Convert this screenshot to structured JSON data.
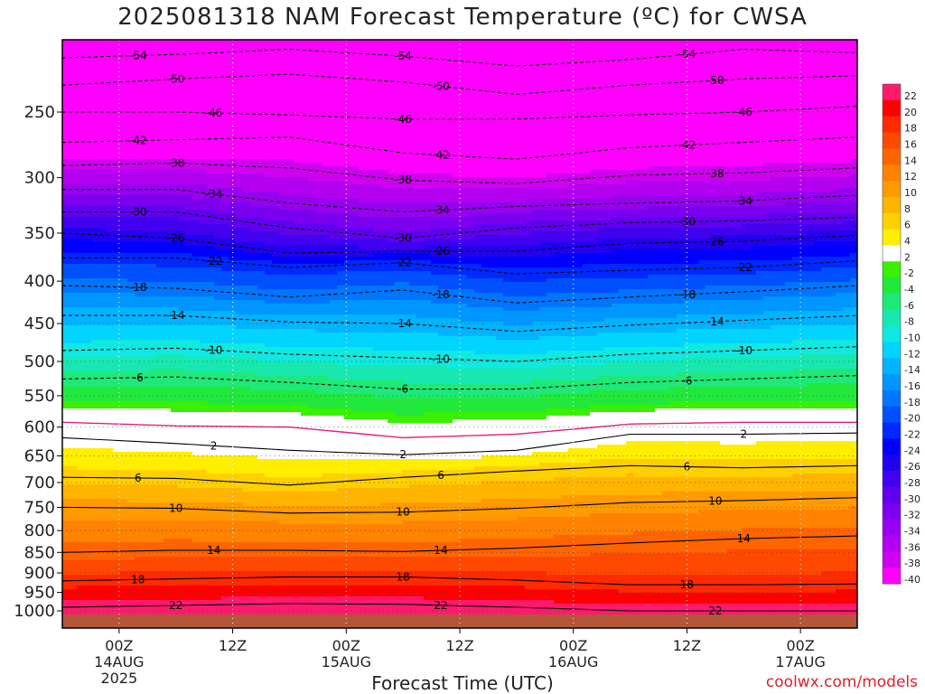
{
  "title": "2025081318 NAM Forecast Temperature (ºC) for CWSA",
  "xlabel": "Forecast Time (UTC)",
  "credit": "coolwx.com/models",
  "chart_data": {
    "type": "heatmap",
    "title": "2025081318 NAM Forecast Temperature (ºC) for CWSA",
    "xlabel": "Forecast Time (UTC)",
    "ylabel": "",
    "y_axis": "pressure (hPa), inverted",
    "y_ticks": [
      250,
      300,
      350,
      400,
      450,
      500,
      550,
      600,
      650,
      700,
      750,
      800,
      850,
      900,
      950,
      1000
    ],
    "x_ticks": [
      {
        "l1": "00Z",
        "l2": "14AUG",
        "l3": "2025",
        "hour": 6
      },
      {
        "l1": "12Z",
        "l2": "",
        "l3": "",
        "hour": 18
      },
      {
        "l1": "00Z",
        "l2": "15AUG",
        "l3": "",
        "hour": 30
      },
      {
        "l1": "12Z",
        "l2": "",
        "l3": "",
        "hour": 42
      },
      {
        "l1": "00Z",
        "l2": "16AUG",
        "l3": "",
        "hour": 54
      },
      {
        "l1": "12Z",
        "l2": "",
        "l3": "",
        "hour": 66
      },
      {
        "l1": "00Z",
        "l2": "17AUG",
        "l3": "",
        "hour": 78
      }
    ],
    "xlim": [
      0,
      84
    ],
    "colorbar": [
      {
        "label": "22",
        "color": "#ff1a6e"
      },
      {
        "label": "20",
        "color": "#ff0000"
      },
      {
        "label": "18",
        "color": "#ff2a00"
      },
      {
        "label": "16",
        "color": "#ff4800"
      },
      {
        "label": "14",
        "color": "#ff6400"
      },
      {
        "label": "12",
        "color": "#ff8200"
      },
      {
        "label": "10",
        "color": "#ff9a00"
      },
      {
        "label": "8",
        "color": "#ffb400"
      },
      {
        "label": "6",
        "color": "#ffd000"
      },
      {
        "label": "4",
        "color": "#ffee00"
      },
      {
        "label": "2",
        "color": "#ffffff"
      },
      {
        "label": "-2",
        "color": "#38f000"
      },
      {
        "label": "-4",
        "color": "#22e83c"
      },
      {
        "label": "-6",
        "color": "#1ee878"
      },
      {
        "label": "-8",
        "color": "#18e8b0"
      },
      {
        "label": "-10",
        "color": "#10e8e0"
      },
      {
        "label": "-12",
        "color": "#00d4ff"
      },
      {
        "label": "-14",
        "color": "#00b4ff"
      },
      {
        "label": "-16",
        "color": "#0096ff"
      },
      {
        "label": "-18",
        "color": "#0076ff"
      },
      {
        "label": "-20",
        "color": "#0050ff"
      },
      {
        "label": "-22",
        "color": "#0028ff"
      },
      {
        "label": "-24",
        "color": "#0000ff"
      },
      {
        "label": "-26",
        "color": "#2200f0"
      },
      {
        "label": "-28",
        "color": "#4200f0"
      },
      {
        "label": "-30",
        "color": "#6000f0"
      },
      {
        "label": "-32",
        "color": "#7c00f0"
      },
      {
        "label": "-34",
        "color": "#9800f0"
      },
      {
        "label": "-36",
        "color": "#b400f0"
      },
      {
        "label": "-38",
        "color": "#d000f0"
      },
      {
        "label": "-40",
        "color": "#ff00ff"
      }
    ],
    "isotherms": [
      {
        "value": -54,
        "pressure": [
          215,
          213,
          210,
          214,
          220,
          216,
          210,
          212
        ],
        "label": "-54",
        "dashed": true
      },
      {
        "value": -50,
        "pressure": [
          232,
          228,
          225,
          230,
          238,
          232,
          228,
          226
        ],
        "label": "-50",
        "dashed": true
      },
      {
        "value": -46,
        "pressure": [
          250,
          250,
          252,
          255,
          255,
          252,
          250,
          246
        ],
        "label": "-46",
        "dashed": true
      },
      {
        "value": -42,
        "pressure": [
          272,
          270,
          268,
          280,
          285,
          276,
          272,
          268
        ],
        "label": "-42",
        "dashed": true
      },
      {
        "value": -38,
        "pressure": [
          290,
          288,
          292,
          302,
          305,
          298,
          296,
          292
        ],
        "label": "-38",
        "dashed": true
      },
      {
        "value": -34,
        "pressure": [
          310,
          310,
          322,
          330,
          325,
          322,
          320,
          315
        ],
        "label": "-34",
        "dashed": true
      },
      {
        "value": -30,
        "pressure": [
          330,
          330,
          345,
          355,
          345,
          340,
          338,
          335
        ],
        "label": "-30",
        "dashed": true
      },
      {
        "value": -26,
        "pressure": [
          350,
          355,
          370,
          368,
          368,
          360,
          358,
          352
        ],
        "label": "-26",
        "dashed": true
      },
      {
        "value": -22,
        "pressure": [
          375,
          375,
          385,
          380,
          392,
          388,
          385,
          378
        ],
        "label": "-22",
        "dashed": true
      },
      {
        "value": -18,
        "pressure": [
          405,
          408,
          418,
          410,
          425,
          418,
          412,
          405
        ],
        "label": "-18",
        "dashed": true
      },
      {
        "value": -14,
        "pressure": [
          440,
          440,
          448,
          450,
          460,
          452,
          446,
          440
        ],
        "label": "-14",
        "dashed": true
      },
      {
        "value": -10,
        "pressure": [
          485,
          482,
          490,
          495,
          500,
          490,
          485,
          480
        ],
        "label": "-10",
        "dashed": true
      },
      {
        "value": -6,
        "pressure": [
          525,
          522,
          530,
          540,
          540,
          530,
          525,
          520
        ],
        "label": "-6",
        "dashed": true
      },
      {
        "value": 0,
        "pressure": [
          592,
          598,
          600,
          618,
          612,
          595,
          592,
          592
        ],
        "label": "",
        "dashed": false,
        "color": "#e0207a"
      },
      {
        "value": 2,
        "pressure": [
          618,
          628,
          640,
          648,
          640,
          612,
          612,
          610
        ],
        "label": "2",
        "dashed": false
      },
      {
        "value": 6,
        "pressure": [
          690,
          692,
          705,
          690,
          678,
          668,
          672,
          668
        ],
        "label": "6",
        "dashed": false
      },
      {
        "value": 10,
        "pressure": [
          750,
          752,
          762,
          760,
          752,
          740,
          736,
          730
        ],
        "label": "10",
        "dashed": false
      },
      {
        "value": 14,
        "pressure": [
          850,
          845,
          845,
          848,
          840,
          828,
          818,
          812
        ],
        "label": "14",
        "dashed": false
      },
      {
        "value": 18,
        "pressure": [
          920,
          915,
          910,
          910,
          918,
          930,
          930,
          928
        ],
        "label": "18",
        "dashed": false
      },
      {
        "value": 22,
        "pressure": [
          990,
          985,
          980,
          982,
          990,
          1000,
          1000,
          1000
        ],
        "label": "22",
        "dashed": false
      }
    ],
    "isotherm_hours": [
      0,
      12,
      24,
      36,
      48,
      60,
      72,
      84
    ],
    "surface_pressure": 1010,
    "ground_color": "#b4563a"
  }
}
